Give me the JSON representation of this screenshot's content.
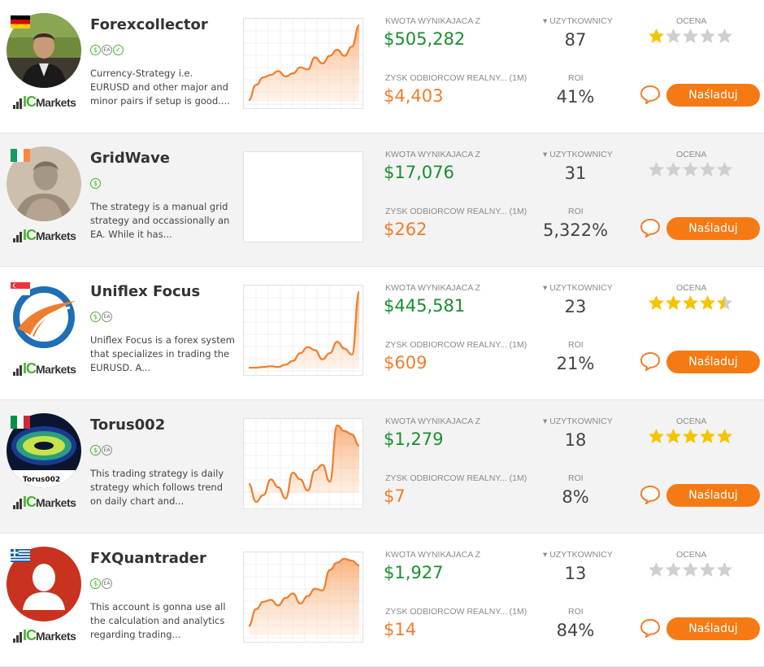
{
  "labels": {
    "amount": "KWOTA WYNIKAJACA Z",
    "profit": "ZYSK ODBIORCOW REALNY... (1M)",
    "users": "▾ UZYTKOWNICY",
    "roi": "ROI",
    "rating": "OCENA",
    "follow": "Naśladuj"
  },
  "colors": {
    "green": "#1a8f2e",
    "orange": "#f07d2d",
    "button": "#f57a13",
    "star": "#f5c400",
    "star_empty": "#cfcfcf"
  },
  "icons": {
    "comment": "comment-bubble-icon",
    "star": "star-icon"
  },
  "broker": {
    "ic": "IC",
    "markets": "Markets"
  },
  "strategies": [
    {
      "name": "Forexcollector",
      "country": "germany",
      "avatar": "photo-man",
      "badges": [
        "$",
        "EA",
        "✓"
      ],
      "description": "Currency-Strategy i.e. EURUSD and other major and minor pairs if setup is good....",
      "amount": "$505,282",
      "profit": "$4,403",
      "users": "87",
      "roi": "41%",
      "rating": 1,
      "chart": [
        0.02,
        0.22,
        0.32,
        0.35,
        0.4,
        0.33,
        0.37,
        0.45,
        0.42,
        0.58,
        0.5,
        0.6,
        0.68,
        0.6,
        0.72,
        1.0
      ]
    },
    {
      "name": "GridWave",
      "country": "ireland",
      "avatar": "statue",
      "badges": [
        "$"
      ],
      "description": "The strategy is a manual grid strategy and occassionally an EA. While it has...",
      "amount": "$17,076",
      "profit": "$262",
      "users": "31",
      "roi": "5,322%",
      "rating": 0,
      "chart": []
    },
    {
      "name": "Uniflex Focus",
      "country": "singapore",
      "avatar": "logo-uniflex",
      "badges": [
        "$",
        "EA"
      ],
      "description": "Uniflex Focus is a forex system that specializes in trading the EURUSD. A...",
      "amount": "$445,581",
      "profit": "$609",
      "users": "23",
      "roi": "21%",
      "rating": 4.5,
      "chart": [
        0.01,
        0.01,
        0.02,
        0.03,
        0.02,
        0.05,
        0.1,
        0.2,
        0.28,
        0.24,
        0.12,
        0.2,
        0.35,
        0.26,
        0.18,
        1.0
      ]
    },
    {
      "name": "Torus002",
      "country": "italy",
      "avatar": "logo-torus",
      "avatar_caption": "Torus002",
      "badges": [
        "$",
        "EA"
      ],
      "description": "This trading strategy is daily strategy which follows trend on daily chart and...",
      "amount": "$1,279",
      "profit": "$7",
      "users": "18",
      "roi": "8%",
      "rating": 5,
      "chart": [
        0.08,
        -0.08,
        -0.02,
        0.12,
        0.05,
        -0.05,
        0.18,
        0.12,
        0.02,
        0.2,
        0.25,
        0.1,
        0.6,
        0.55,
        0.52,
        0.42
      ]
    },
    {
      "name": "FXQuantrader",
      "country": "greece",
      "avatar": "placeholder-user",
      "badges": [
        "$",
        "EA"
      ],
      "description": "This account is gonna use all the calculation and analytics regarding trading...",
      "amount": "$1,927",
      "profit": "$14",
      "users": "13",
      "roi": "84%",
      "rating": 0,
      "chart": [
        0.1,
        0.28,
        0.36,
        0.38,
        0.32,
        0.4,
        0.45,
        0.34,
        0.42,
        0.5,
        0.48,
        0.7,
        0.78,
        0.82,
        0.8,
        0.75
      ]
    }
  ]
}
